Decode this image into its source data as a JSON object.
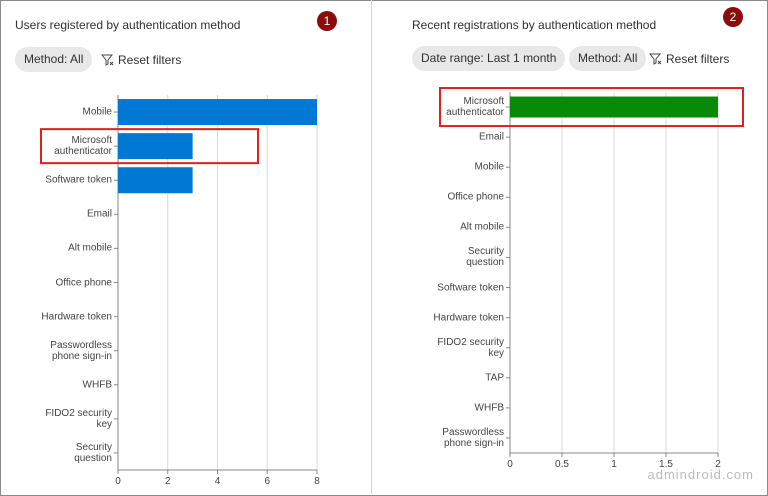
{
  "panels": [
    {
      "badge": "1",
      "title": "Users registered by authentication method",
      "filters": [
        "Method: All"
      ],
      "reset": "Reset filters",
      "chart": {
        "type": "bar",
        "color": "#0078d4",
        "grid": true,
        "categories": [
          "Mobile",
          "Microsoft authenticator",
          "Software token",
          "Email",
          "Alt mobile",
          "Office phone",
          "Hardware token",
          "Passwordless phone sign-in",
          "WHFB",
          "FIDO2 security key",
          "Security question"
        ],
        "values": [
          8,
          3,
          3,
          0,
          0,
          0,
          0,
          0,
          0,
          0,
          0
        ],
        "xlim": [
          0,
          8
        ],
        "xticks": [
          0,
          2,
          4,
          6,
          8
        ]
      }
    },
    {
      "badge": "2",
      "title": "Recent registrations by authentication method",
      "filters": [
        "Date range: Last 1 month",
        "Method: All"
      ],
      "reset": "Reset filters",
      "chart": {
        "type": "bar",
        "color": "#088a08",
        "grid": true,
        "categories": [
          "Microsoft authenticator",
          "Email",
          "Mobile",
          "Office phone",
          "Alt mobile",
          "Security question",
          "Software token",
          "Hardware token",
          "FIDO2 security key",
          "TAP",
          "WHFB",
          "Passwordless phone sign-in"
        ],
        "values": [
          2,
          0,
          0,
          0,
          0,
          0,
          0,
          0,
          0,
          0,
          0,
          0
        ],
        "xlim": [
          0,
          2
        ],
        "xticks": [
          0,
          0.5,
          1,
          1.5,
          2
        ]
      }
    }
  ],
  "watermark": "admindroid.com"
}
